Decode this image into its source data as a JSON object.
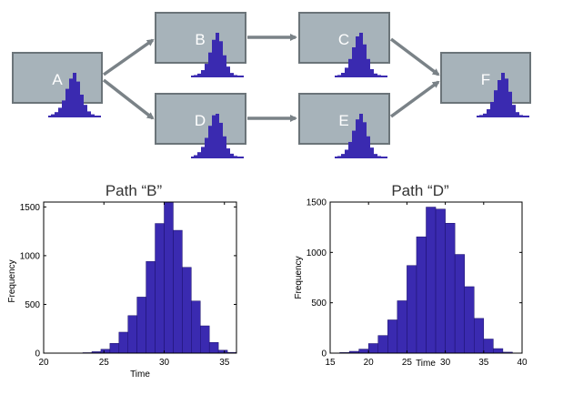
{
  "colors": {
    "node_fill": "#a7b3ba",
    "node_border": "#6b7479",
    "arrow": "#7a8287",
    "bar": "#3a2ab0",
    "bar_edge": "#1a0f6a",
    "label": "#ffffff"
  },
  "diagram": {
    "nodes": [
      {
        "id": "A",
        "label": "A",
        "hist": [
          3,
          6,
          12,
          22,
          38,
          52,
          60,
          48,
          30,
          16,
          7,
          3
        ]
      },
      {
        "id": "B",
        "label": "B",
        "hist": [
          2,
          4,
          9,
          18,
          34,
          52,
          62,
          50,
          30,
          14,
          5,
          2
        ]
      },
      {
        "id": "C",
        "label": "C",
        "hist": [
          2,
          5,
          12,
          24,
          40,
          55,
          60,
          44,
          24,
          10,
          4,
          2
        ]
      },
      {
        "id": "D",
        "label": "D",
        "hist": [
          3,
          7,
          14,
          26,
          42,
          56,
          58,
          46,
          28,
          12,
          5,
          2
        ]
      },
      {
        "id": "E",
        "label": "E",
        "hist": [
          2,
          5,
          11,
          22,
          38,
          54,
          62,
          50,
          30,
          14,
          5,
          2
        ]
      },
      {
        "id": "F",
        "label": "F",
        "hist": [
          2,
          4,
          10,
          20,
          36,
          50,
          60,
          52,
          34,
          16,
          6,
          2
        ]
      }
    ],
    "edges": [
      {
        "from": "A",
        "to": "B"
      },
      {
        "from": "A",
        "to": "D"
      },
      {
        "from": "B",
        "to": "C"
      },
      {
        "from": "D",
        "to": "E"
      },
      {
        "from": "C",
        "to": "F"
      },
      {
        "from": "E",
        "to": "F"
      }
    ]
  },
  "chart_data": [
    {
      "type": "bar",
      "title": "Path “B”",
      "xlabel": "Time",
      "ylabel": "Frequency",
      "xlim": [
        20,
        36
      ],
      "ylim": [
        0,
        1550
      ],
      "xticks": [
        20,
        25,
        30,
        35
      ],
      "yticks": [
        0,
        500,
        1000,
        1500
      ],
      "bin_width": 0.75,
      "bin_starts": [
        22.5,
        23.25,
        24.0,
        24.75,
        25.5,
        26.25,
        27.0,
        27.75,
        28.5,
        29.25,
        30.0,
        30.75,
        31.5,
        32.25,
        33.0,
        33.75,
        34.5,
        35.25
      ],
      "values": [
        2,
        5,
        15,
        40,
        100,
        215,
        385,
        575,
        940,
        1330,
        1550,
        1260,
        880,
        535,
        280,
        110,
        30,
        8
      ]
    },
    {
      "type": "bar",
      "title": "Path “D”",
      "xlabel": "Time",
      "ylabel": "Frequency",
      "xlim": [
        15,
        40
      ],
      "ylim": [
        0,
        1500
      ],
      "xticks": [
        15,
        20,
        25,
        30,
        35,
        40
      ],
      "yticks": [
        0,
        500,
        1000,
        1500
      ],
      "bin_width": 1.25,
      "bin_starts": [
        15.0,
        16.25,
        17.5,
        18.75,
        20.0,
        21.25,
        22.5,
        23.75,
        25.0,
        26.25,
        27.5,
        28.75,
        30.0,
        31.25,
        32.5,
        33.75,
        35.0,
        36.25,
        37.5
      ],
      "values": [
        2,
        6,
        18,
        40,
        95,
        175,
        330,
        520,
        870,
        1155,
        1450,
        1430,
        1290,
        980,
        660,
        345,
        140,
        45,
        10
      ]
    }
  ]
}
